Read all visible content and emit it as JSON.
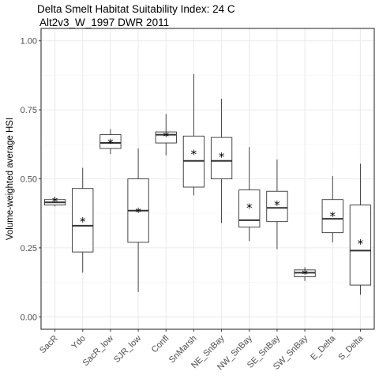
{
  "chart_data": {
    "type": "boxplot",
    "title": "Delta Smelt Habitat Suitability Index: 24 C",
    "subtitle": " Alt2v3_W_1997 DWR 2011",
    "xlabel": "",
    "ylabel": "Volume-weighted average HSI",
    "ylim": [
      -0.045,
      1.045
    ],
    "yticks": [
      0.0,
      0.25,
      0.5,
      0.75,
      1.0
    ],
    "ytick_labels": [
      "0.00",
      "0.25",
      "0.50",
      "0.75",
      "1.00"
    ],
    "grid": true,
    "mean_marker": "*",
    "categories": [
      "SacR",
      "Ydo",
      "SacR_low",
      "SJR_low",
      "Confl",
      "SnMarsh",
      "NE_SnBay",
      "NW_SnBay",
      "SE_SnBay",
      "SW_SnBay",
      "E_Delta",
      "S_Delta"
    ],
    "boxes": [
      {
        "min": 0.4,
        "q1": 0.405,
        "median": 0.415,
        "q3": 0.425,
        "max": 0.435,
        "mean": 0.418
      },
      {
        "min": 0.16,
        "q1": 0.235,
        "median": 0.33,
        "q3": 0.465,
        "max": 0.54,
        "mean": 0.345
      },
      {
        "min": 0.59,
        "q1": 0.61,
        "median": 0.63,
        "q3": 0.66,
        "max": 0.68,
        "mean": 0.63
      },
      {
        "min": 0.09,
        "q1": 0.27,
        "median": 0.385,
        "q3": 0.5,
        "max": 0.61,
        "mean": 0.38
      },
      {
        "min": 0.585,
        "q1": 0.63,
        "median": 0.66,
        "q3": 0.67,
        "max": 0.735,
        "mean": 0.655
      },
      {
        "min": 0.44,
        "q1": 0.47,
        "median": 0.565,
        "q3": 0.655,
        "max": 0.88,
        "mean": 0.59
      },
      {
        "min": 0.34,
        "q1": 0.5,
        "median": 0.565,
        "q3": 0.65,
        "max": 0.79,
        "mean": 0.58
      },
      {
        "min": 0.275,
        "q1": 0.325,
        "median": 0.35,
        "q3": 0.46,
        "max": 0.615,
        "mean": 0.395
      },
      {
        "min": 0.245,
        "q1": 0.345,
        "median": 0.395,
        "q3": 0.455,
        "max": 0.57,
        "mean": 0.405
      },
      {
        "min": 0.13,
        "q1": 0.145,
        "median": 0.16,
        "q3": 0.17,
        "max": 0.18,
        "mean": 0.155
      },
      {
        "min": 0.27,
        "q1": 0.305,
        "median": 0.355,
        "q3": 0.425,
        "max": 0.51,
        "mean": 0.365
      },
      {
        "min": 0.08,
        "q1": 0.115,
        "median": 0.24,
        "q3": 0.405,
        "max": 0.555,
        "mean": 0.265
      }
    ],
    "colors": {
      "background": "#ffffff",
      "panel_border": "#333333",
      "grid_major": "#ebebeb",
      "grid_minor": "#f5f5f5",
      "box_stroke": "#333333",
      "tick_text": "#4d4d4d",
      "text": "#000000"
    }
  }
}
